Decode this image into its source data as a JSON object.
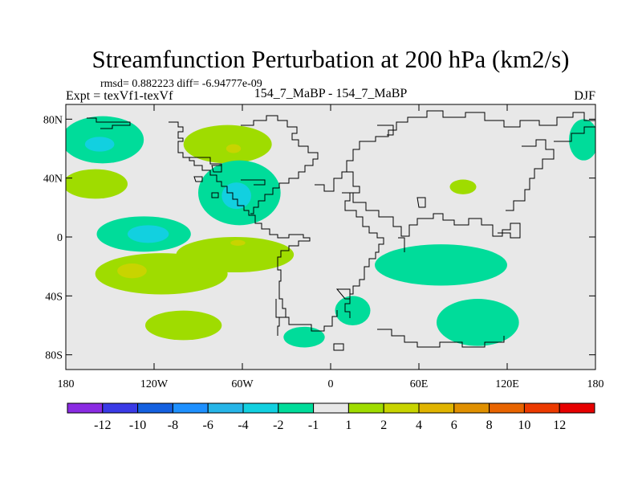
{
  "chart_data": {
    "type": "heatmap",
    "title": "Streamfunction Perturbation at 200 hPa (km2/s)",
    "subtitle_stats": "rmsd= 0.882223 diff= -6.94777e-09",
    "left_label": "Expt = texVf1-texVf",
    "center_label": "154_7_MaBP - 154_7_MaBP",
    "season_label": "DJF",
    "x_ticks": [
      {
        "value": -180,
        "label": "180"
      },
      {
        "value": -120,
        "label": "120W"
      },
      {
        "value": -60,
        "label": "60W"
      },
      {
        "value": 0,
        "label": "0"
      },
      {
        "value": 60,
        "label": "60E"
      },
      {
        "value": 120,
        "label": "120E"
      },
      {
        "value": 180,
        "label": "180"
      }
    ],
    "y_ticks": [
      {
        "value": 80,
        "label": "80N"
      },
      {
        "value": 40,
        "label": "40N"
      },
      {
        "value": 0,
        "label": "0"
      },
      {
        "value": -40,
        "label": "40S"
      },
      {
        "value": -80,
        "label": "80S"
      }
    ],
    "xlim": [
      -180,
      180
    ],
    "ylim": [
      -90,
      90
    ],
    "colorbar": {
      "colors": [
        "#8a2be2",
        "#3a3ae6",
        "#1460e0",
        "#1e90ff",
        "#26b5e8",
        "#12d0e0",
        "#00dc9a",
        "#e8e8e8",
        "#9fdc00",
        "#c8d400",
        "#e0b400",
        "#e09000",
        "#e86400",
        "#ec3a00",
        "#e60000"
      ],
      "labels": [
        "-12",
        "-10",
        "-8",
        "-6",
        "-4",
        "-2",
        "-1",
        "1",
        "2",
        "4",
        "6",
        "8",
        "10",
        "12"
      ]
    },
    "background_color": "#e8e8e8",
    "anomalies": [
      {
        "lon": -155,
        "lat": 66,
        "rlon": 28,
        "rlat": 16,
        "level": -1
      },
      {
        "lon": -157,
        "lat": 63,
        "rlon": 10,
        "rlat": 5,
        "level": -2
      },
      {
        "lon": -165,
        "lat": 38,
        "rlon": 2,
        "rlat": 3,
        "level": 2
      },
      {
        "lon": -160,
        "lat": 36,
        "rlon": 22,
        "rlat": 10,
        "level": 1
      },
      {
        "lon": -70,
        "lat": 63,
        "rlon": 30,
        "rlat": 13,
        "level": 1
      },
      {
        "lon": -66,
        "lat": 60,
        "rlon": 5,
        "rlat": 3,
        "level": 2
      },
      {
        "lon": -62,
        "lat": 30,
        "rlon": 28,
        "rlat": 22,
        "level": -1
      },
      {
        "lon": -64,
        "lat": 28,
        "rlon": 10,
        "rlat": 9,
        "level": -2
      },
      {
        "lon": 90,
        "lat": 34,
        "rlon": 9,
        "rlat": 5,
        "level": 1
      },
      {
        "lon": 172,
        "lat": 66,
        "rlon": 10,
        "rlat": 14,
        "level": -1
      },
      {
        "lon": -127,
        "lat": 2,
        "rlon": 32,
        "rlat": 12,
        "level": -1
      },
      {
        "lon": -124,
        "lat": 2,
        "rlon": 14,
        "rlat": 6,
        "level": -2
      },
      {
        "lon": -115,
        "lat": -25,
        "rlon": 45,
        "rlat": 14,
        "level": 1
      },
      {
        "lon": -65,
        "lat": -12,
        "rlon": 40,
        "rlat": 12,
        "level": 1
      },
      {
        "lon": -135,
        "lat": -23,
        "rlon": 10,
        "rlat": 5,
        "level": 2
      },
      {
        "lon": -63,
        "lat": -4,
        "rlon": 5,
        "rlat": 2,
        "level": 2
      },
      {
        "lon": -100,
        "lat": -60,
        "rlon": 26,
        "rlat": 10,
        "level": 1
      },
      {
        "lon": 15,
        "lat": -50,
        "rlon": 12,
        "rlat": 10,
        "level": -1
      },
      {
        "lon": -18,
        "lat": -68,
        "rlon": 14,
        "rlat": 7,
        "level": -1
      },
      {
        "lon": 75,
        "lat": -19,
        "rlon": 45,
        "rlat": 14,
        "level": -1
      },
      {
        "lon": 100,
        "lat": -58,
        "rlon": 28,
        "rlat": 16,
        "level": -1
      }
    ]
  }
}
